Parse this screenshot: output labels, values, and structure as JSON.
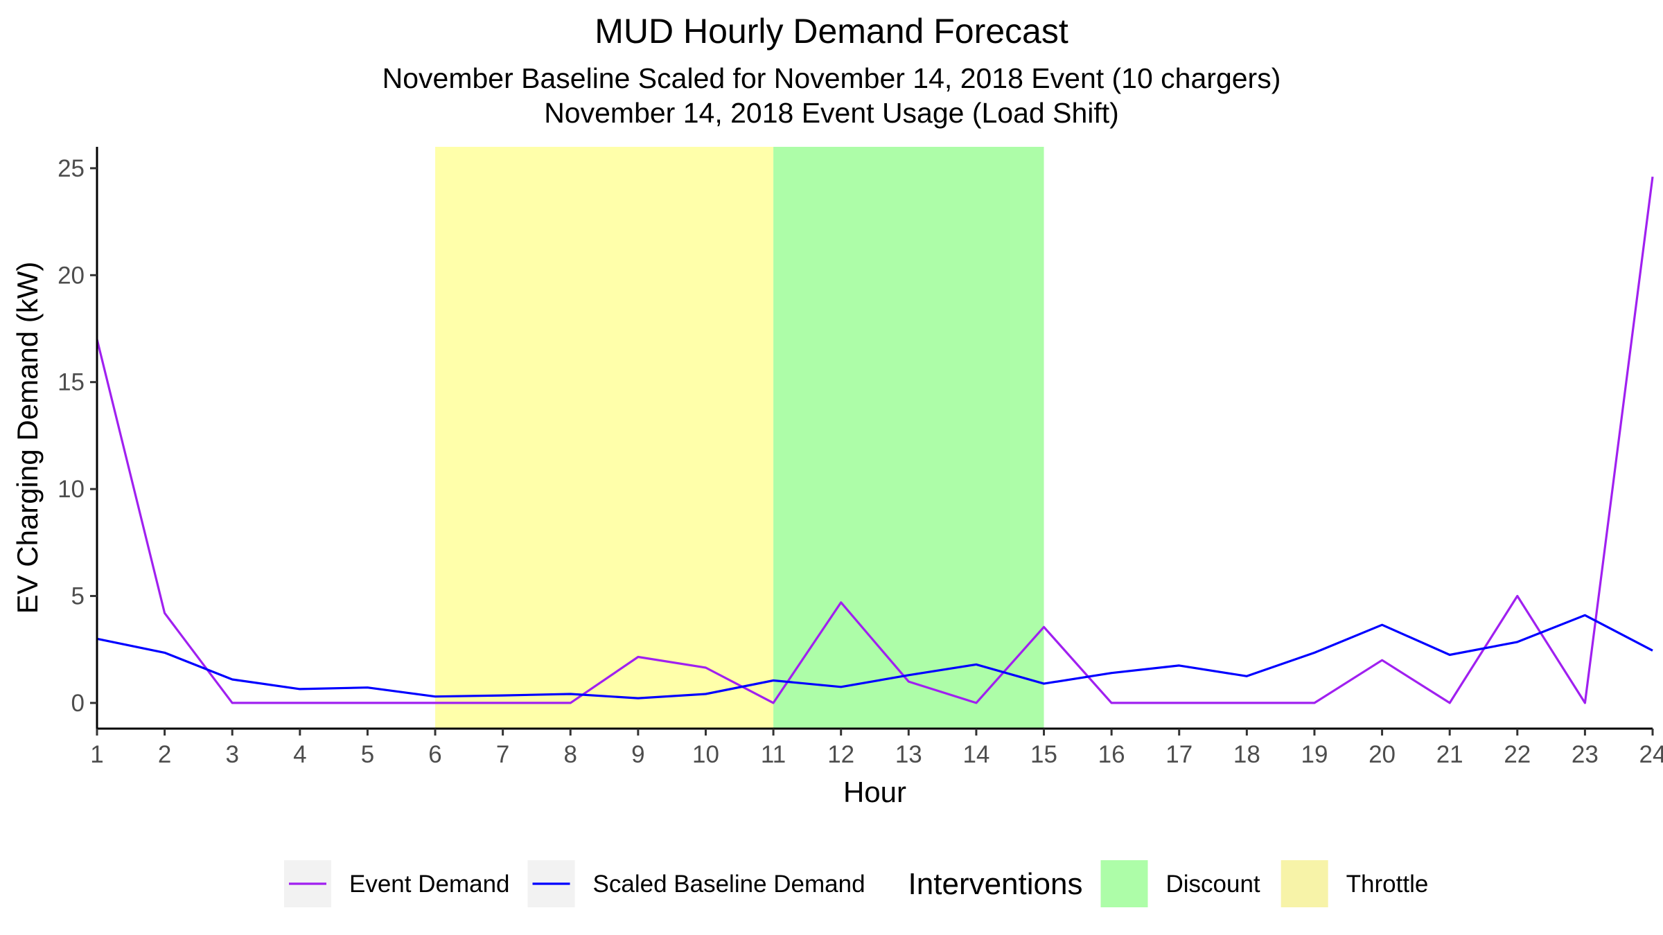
{
  "chart_data": {
    "type": "line",
    "title": "MUD Hourly Demand Forecast",
    "subtitle_lines": [
      "November Baseline Scaled for November 14, 2018 Event (10 chargers)",
      "November 14, 2018 Event Usage (Load Shift)"
    ],
    "xlabel": "Hour",
    "ylabel": "EV Charging Demand (kW)",
    "x": [
      1,
      2,
      3,
      4,
      5,
      6,
      7,
      8,
      9,
      10,
      11,
      12,
      13,
      14,
      15,
      16,
      17,
      18,
      19,
      20,
      21,
      22,
      23,
      24
    ],
    "xlim": [
      1,
      24
    ],
    "ylim": [
      -1.2,
      26
    ],
    "yticks": [
      0,
      5,
      10,
      15,
      20,
      25
    ],
    "grid": false,
    "series": [
      {
        "name": "Event Demand",
        "color": "#A020F0",
        "values": [
          17,
          4.2,
          0,
          0,
          0,
          0,
          0,
          0,
          2.15,
          1.65,
          0,
          4.7,
          1,
          0,
          3.55,
          0,
          0,
          0,
          0,
          2,
          0,
          5,
          0,
          24.6
        ]
      },
      {
        "name": "Scaled Baseline Demand",
        "color": "#0000FF",
        "values": [
          3,
          2.35,
          1.1,
          0.65,
          0.72,
          0.3,
          0.35,
          0.42,
          0.22,
          0.42,
          1.05,
          0.75,
          1.3,
          1.8,
          0.9,
          1.4,
          1.75,
          1.25,
          2.35,
          3.65,
          2.25,
          2.85,
          4.1,
          2.45
        ]
      }
    ],
    "interventions": {
      "title": "Interventions",
      "bands": [
        {
          "name": "Throttle",
          "start": 6,
          "end": 11,
          "color": "#FFFFAA"
        },
        {
          "name": "Discount",
          "start": 11,
          "end": 15,
          "color": "#ADFDA8"
        }
      ],
      "legend_order": [
        {
          "name": "Discount",
          "color": "#ADFDA8"
        },
        {
          "name": "Throttle",
          "color": "#F7F3A8"
        }
      ]
    },
    "legend_position": "bottom"
  }
}
